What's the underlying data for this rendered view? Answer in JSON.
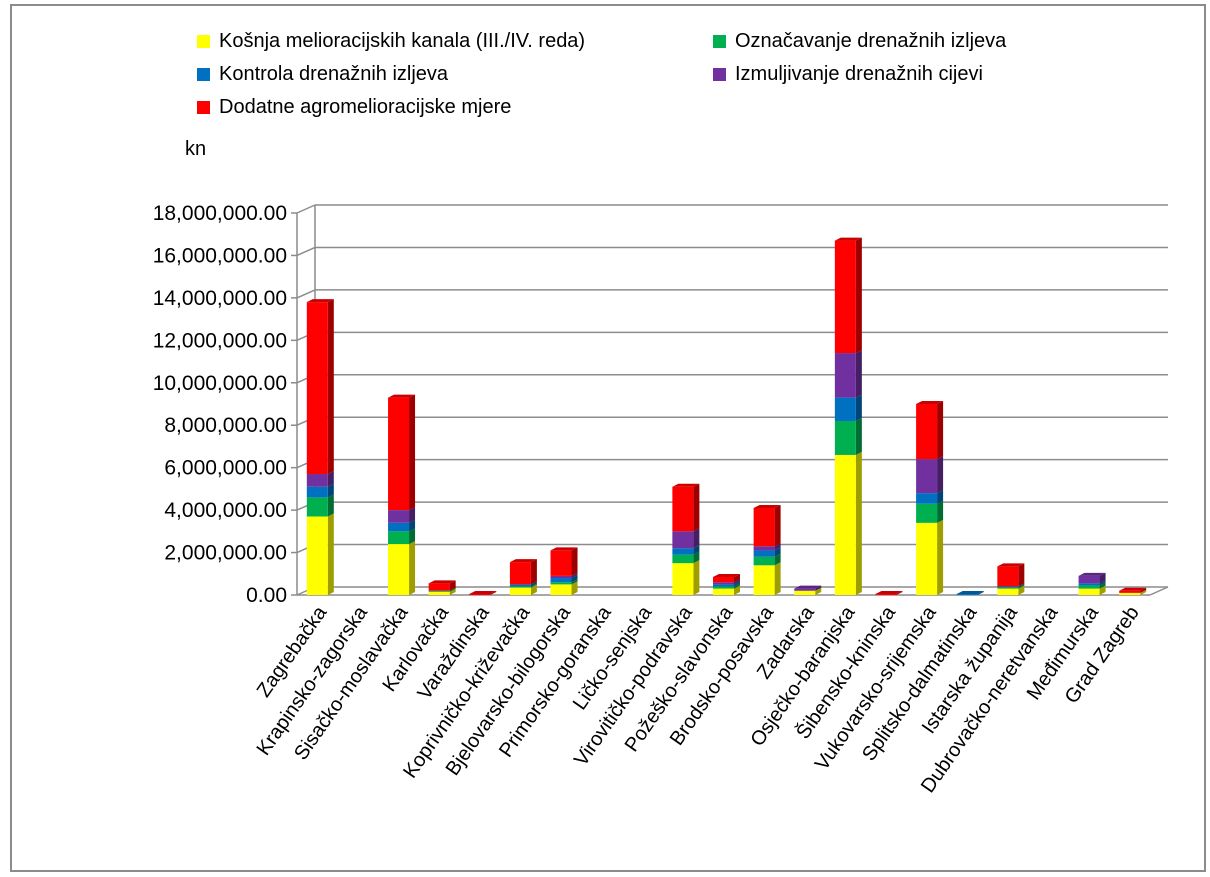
{
  "chart_data": {
    "type": "bar",
    "stacked": true,
    "view": "3d",
    "unit_label": "kn",
    "title": "",
    "xlabel": "",
    "ylabel": "kn",
    "ylim": [
      0,
      18000000
    ],
    "y_ticks": [
      "0.00",
      "2,000,000.00",
      "4,000,000.00",
      "6,000,000.00",
      "8,000,000.00",
      "10,000,000.00",
      "12,000,000.00",
      "14,000,000.00",
      "16,000,000.00",
      "18,000,000.00"
    ],
    "grid": true,
    "legend_position": "top",
    "categories": [
      "Zagrebačka",
      "Krapinsko-zagorska",
      "Sisačko-moslavačka",
      "Karlovačka",
      "Varaždinska",
      "Koprivničko-križevačka",
      "Bjelovarsko-bilogorska",
      "Primorsko-goranska",
      "Ličko-senjska",
      "Virovitičko-podravska",
      "Požeško-slavonska",
      "Brodsko-posavska",
      "Zadarska",
      "Osječko-baranjska",
      "Šibensko-kninska",
      "Vukovarsko-srijemska",
      "Splitsko-dalmatinska",
      "Istarska županija",
      "Dubrovačko-neretvanska",
      "Međimurska",
      "Grad Zagreb"
    ],
    "series": [
      {
        "name": "Košnja melioracijskih kanala (III./IV. reda)",
        "color": "#ffff00",
        "values": [
          3700000,
          0,
          2400000,
          150000,
          0,
          350000,
          500000,
          0,
          0,
          1500000,
          300000,
          1400000,
          200000,
          6600000,
          0,
          3400000,
          0,
          300000,
          0,
          300000,
          100000
        ]
      },
      {
        "name": "Označavanje drenažnih izljeva",
        "color": "#00b050",
        "values": [
          900000,
          0,
          600000,
          50000,
          0,
          50000,
          100000,
          0,
          0,
          400000,
          100000,
          400000,
          0,
          1600000,
          0,
          900000,
          0,
          50000,
          0,
          150000,
          0
        ]
      },
      {
        "name": "Kontrola drenažnih izljeva",
        "color": "#0070c0",
        "values": [
          500000,
          0,
          400000,
          0,
          0,
          100000,
          200000,
          0,
          0,
          300000,
          100000,
          300000,
          0,
          1100000,
          0,
          500000,
          50000,
          50000,
          0,
          100000,
          0
        ]
      },
      {
        "name": "Izmuljivanje drenažnih cijevi",
        "color": "#7030a0",
        "values": [
          600000,
          0,
          600000,
          0,
          0,
          0,
          100000,
          0,
          0,
          800000,
          100000,
          200000,
          100000,
          2100000,
          0,
          1600000,
          0,
          0,
          0,
          350000,
          0
        ]
      },
      {
        "name": "Dodatne agromelioracijske mjere",
        "color": "#ff0000",
        "values": [
          8100000,
          0,
          5300000,
          350000,
          50000,
          1050000,
          1200000,
          0,
          0,
          2100000,
          250000,
          1800000,
          0,
          5300000,
          50000,
          2600000,
          0,
          950000,
          0,
          0,
          100000
        ]
      }
    ]
  }
}
